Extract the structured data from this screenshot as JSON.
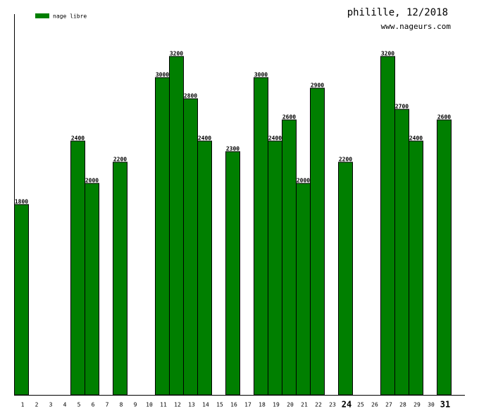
{
  "chart_data": {
    "type": "bar",
    "title": "philille, 12/2018",
    "subtitle": "www.nageurs.com",
    "categories": [
      "1",
      "2",
      "3",
      "4",
      "5",
      "6",
      "7",
      "8",
      "9",
      "10",
      "11",
      "12",
      "13",
      "14",
      "15",
      "16",
      "17",
      "18",
      "19",
      "20",
      "21",
      "22",
      "23",
      "24",
      "25",
      "26",
      "27",
      "28",
      "29",
      "30",
      "31"
    ],
    "emphasized_categories": [
      "24",
      "31"
    ],
    "series": [
      {
        "name": "nage libre",
        "color": "#007f00",
        "values": [
          1800,
          null,
          null,
          null,
          2400,
          2000,
          null,
          2200,
          null,
          null,
          3000,
          3200,
          2800,
          2400,
          null,
          2300,
          null,
          3000,
          2400,
          2600,
          2000,
          2900,
          null,
          2200,
          null,
          null,
          3200,
          2700,
          2400,
          null,
          2600
        ]
      }
    ],
    "ylim": [
      0,
      3600
    ]
  }
}
